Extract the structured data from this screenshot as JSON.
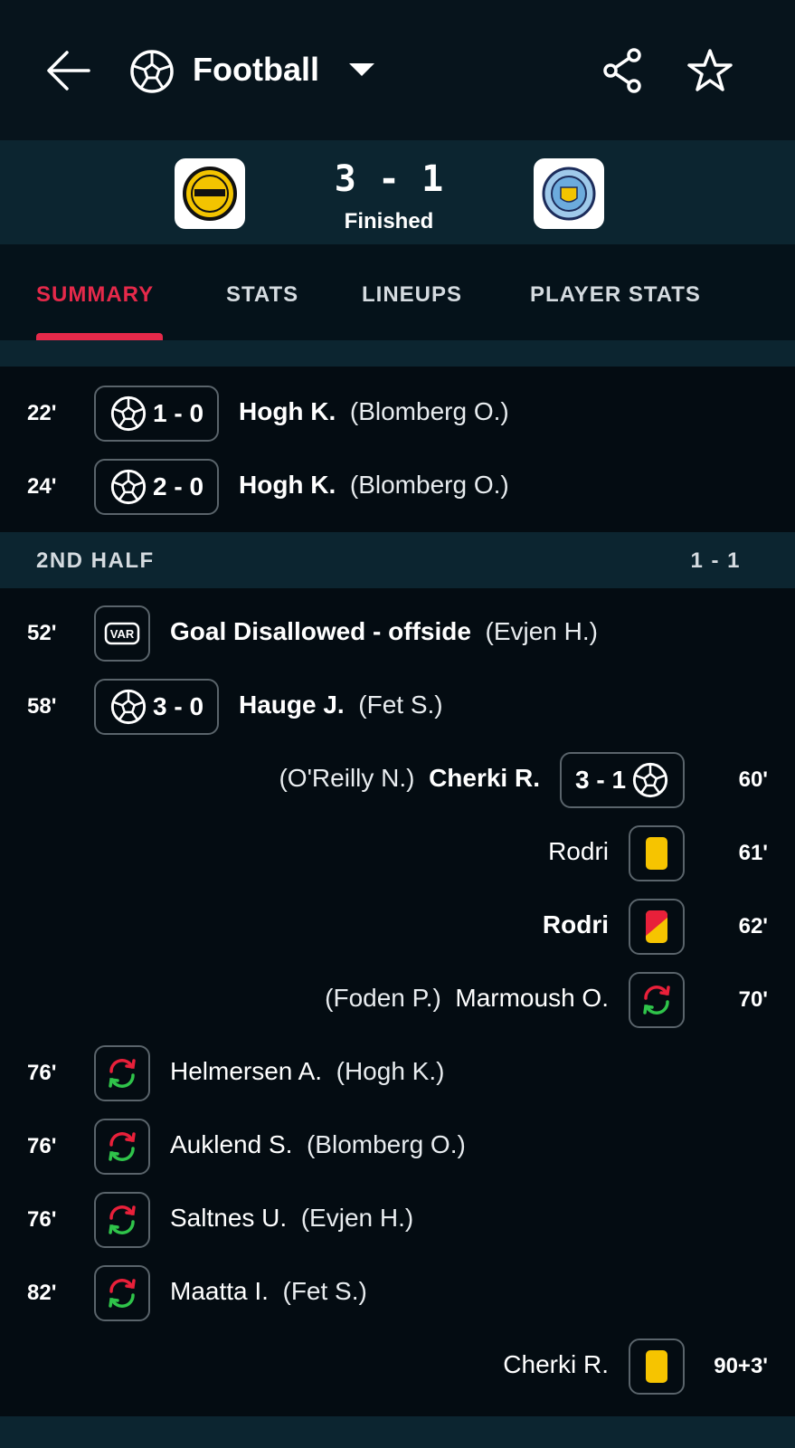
{
  "header": {
    "title": "Football"
  },
  "match": {
    "score": "3 - 1",
    "status": "Finished"
  },
  "tabs": [
    "SUMMARY",
    "STATS",
    "LINEUPS",
    "PLAYER STATS"
  ],
  "active_tab": 0,
  "sections": [
    {
      "title": "2ND HALF",
      "score": "1 - 1",
      "before_event": 2
    }
  ],
  "events": [
    {
      "minute": "22'",
      "side": "home",
      "kind": "goal",
      "score": "1 - 0",
      "player": "Hogh K.",
      "detail": "(Blomberg O.)"
    },
    {
      "minute": "24'",
      "side": "home",
      "kind": "goal",
      "score": "2 - 0",
      "player": "Hogh K.",
      "detail": "(Blomberg O.)"
    },
    {
      "minute": "52'",
      "side": "home",
      "kind": "var",
      "player": "Goal Disallowed - offside",
      "detail": "(Evjen H.)"
    },
    {
      "minute": "58'",
      "side": "home",
      "kind": "goal",
      "score": "3 - 0",
      "player": "Hauge J.",
      "detail": "(Fet S.)"
    },
    {
      "minute": "60'",
      "side": "away",
      "kind": "goal",
      "score": "3 - 1",
      "player": "Cherki R.",
      "detail": "(O'Reilly N.)"
    },
    {
      "minute": "61'",
      "side": "away",
      "kind": "yellow",
      "player": "Rodri"
    },
    {
      "minute": "62'",
      "side": "away",
      "kind": "red",
      "player": "Rodri"
    },
    {
      "minute": "70'",
      "side": "away",
      "kind": "sub",
      "player": "Marmoush O.",
      "detail": "(Foden P.)"
    },
    {
      "minute": "76'",
      "side": "home",
      "kind": "sub",
      "player": "Helmersen A.",
      "detail": "(Hogh K.)"
    },
    {
      "minute": "76'",
      "side": "home",
      "kind": "sub",
      "player": "Auklend S.",
      "detail": "(Blomberg O.)"
    },
    {
      "minute": "76'",
      "side": "home",
      "kind": "sub",
      "player": "Saltnes U.",
      "detail": "(Evjen H.)"
    },
    {
      "minute": "82'",
      "side": "home",
      "kind": "sub",
      "player": "Maatta I.",
      "detail": "(Fet S.)"
    },
    {
      "minute": "90+3'",
      "side": "away",
      "kind": "yellow",
      "player": "Cherki R."
    }
  ]
}
